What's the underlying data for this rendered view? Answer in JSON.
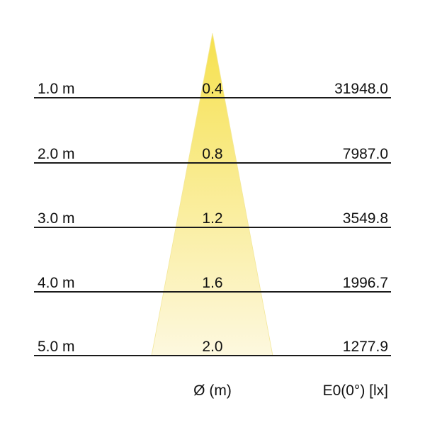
{
  "colors": {
    "cone_top": "#f6e14e",
    "cone_bottom": "#fdf8df",
    "line": "#1a1a1a"
  },
  "rows": [
    {
      "distance": "1.0 m",
      "diameter": "0.4",
      "illuminance": "31948.0"
    },
    {
      "distance": "2.0 m",
      "diameter": "0.8",
      "illuminance": "7987.0"
    },
    {
      "distance": "3.0 m",
      "diameter": "1.2",
      "illuminance": "3549.8"
    },
    {
      "distance": "4.0 m",
      "diameter": "1.6",
      "illuminance": "1996.7"
    },
    {
      "distance": "5.0 m",
      "diameter": "2.0",
      "illuminance": "1277.9"
    }
  ],
  "footer": {
    "diameter_label": "Ø (m)",
    "illuminance_label": "E0(0°) [lx]"
  }
}
